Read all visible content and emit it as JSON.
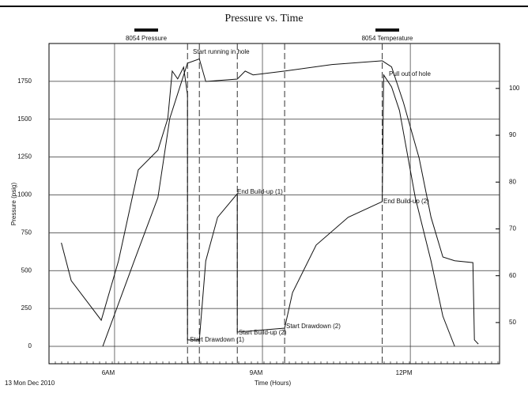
{
  "chart_data": {
    "type": "line",
    "title": "Pressure vs. Time",
    "xlabel": "Time (Hours)",
    "ylabel": "Pressure (psig)",
    "footnote": "13 Mon Dec 2010",
    "xlim": [
      4.67,
      13.81
    ],
    "xticks": [
      {
        "value": 6,
        "label": "6AM"
      },
      {
        "value": 9,
        "label": "9AM"
      },
      {
        "value": 12,
        "label": "12PM"
      }
    ],
    "ylim": [
      -115,
      2000
    ],
    "yticks": [
      0,
      250,
      500,
      750,
      1000,
      1250,
      1500,
      1750
    ],
    "y2lim": [
      41.2,
      109.6
    ],
    "y2ticks": [
      50,
      60,
      70,
      80,
      90,
      100
    ],
    "grid": true,
    "event_lines": [
      7.48,
      7.72,
      8.49,
      9.45,
      11.43
    ],
    "annotations": [
      "Start running in hole",
      "End Build-up (1)",
      "Start Drawdown (1)",
      "Start Build-up (2)",
      "End Build-up (2)",
      "Start Drawdown (2)",
      "Pull out of hole"
    ],
    "series": [
      {
        "name": "8054 Pressure",
        "color": "#111111",
        "axis": "y",
        "x": [
          4.92,
          5.12,
          5.73,
          6.08,
          6.48,
          6.88,
          7.08,
          7.17,
          7.28,
          7.4,
          7.48,
          7.48,
          7.72,
          7.85,
          8.09,
          8.49,
          8.49,
          9.45,
          9.61,
          10.09,
          10.74,
          11.43,
          11.46,
          11.62,
          11.78,
          12.1,
          12.42,
          12.66,
          12.9
        ],
        "values": [
          684,
          434,
          172,
          564,
          1165,
          1296,
          1505,
          1818,
          1766,
          1844,
          1661,
          42,
          42,
          564,
          852,
          1008,
          94,
          120,
          355,
          669,
          852,
          956,
          1792,
          1714,
          1557,
          982,
          564,
          199,
          0
        ]
      },
      {
        "name": "8054 Temperature",
        "color": "#111111",
        "axis": "y2",
        "x": [
          5.76,
          6.4,
          6.88,
          7.12,
          7.48,
          7.72,
          7.85,
          8.49,
          8.65,
          8.81,
          9.45,
          10.41,
          11.43,
          11.62,
          11.86,
          12.18,
          12.42,
          12.66,
          12.9,
          13.27,
          13.3,
          13.38
        ],
        "values": [
          44.9,
          63.2,
          76.7,
          93.6,
          105.4,
          106.3,
          101.5,
          102,
          103.7,
          102.9,
          103.7,
          105.1,
          105.9,
          104.6,
          97,
          85.1,
          72.5,
          64,
          63.2,
          62.8,
          46.3,
          45.4
        ]
      }
    ]
  }
}
